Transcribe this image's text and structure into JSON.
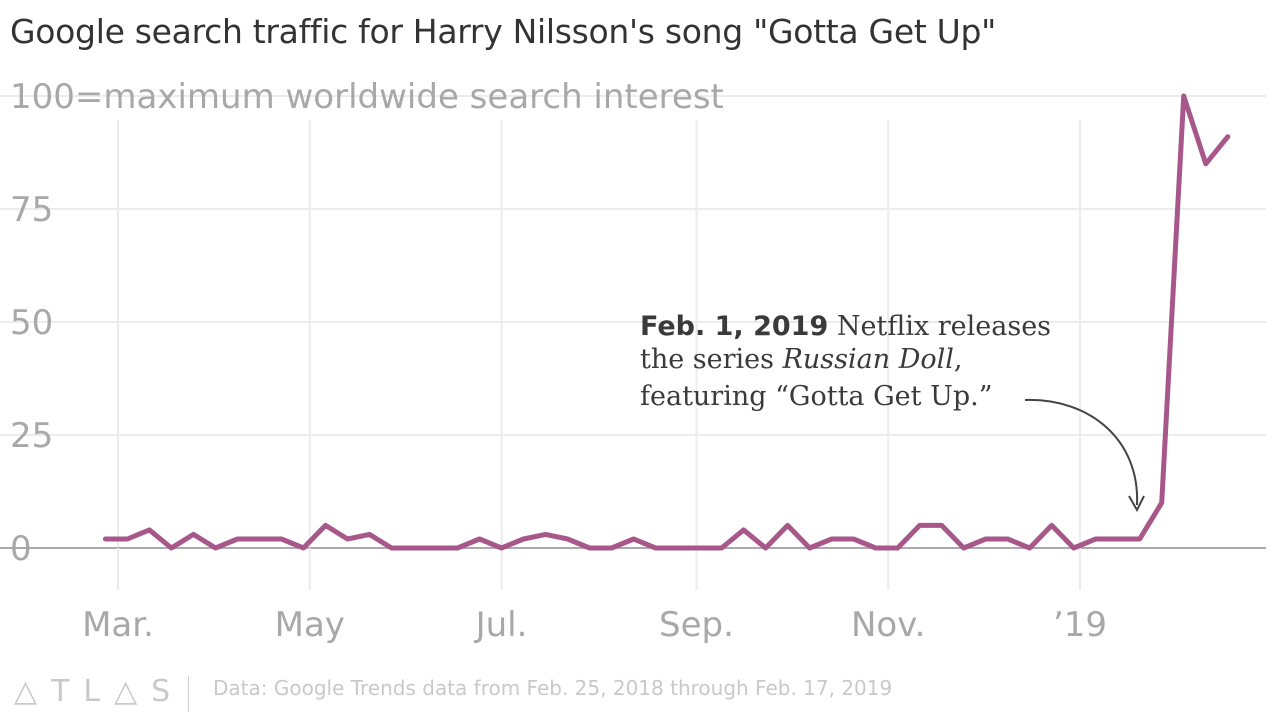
{
  "chart_data": {
    "type": "line",
    "title": "Google search traffic for Harry Nilsson's song \"Gotta Get Up\"",
    "subtitle": "100=maximum worldwide search interest",
    "ylim": [
      0,
      100
    ],
    "y_ticks": [
      "0",
      "25",
      "50",
      "75"
    ],
    "x_ticks": [
      "Mar.",
      "May",
      "Jul.",
      "Sep.",
      "Nov.",
      "’19"
    ],
    "x_tick_dates": [
      "2018-03-01",
      "2018-05-01",
      "2018-07-01",
      "2018-09-01",
      "2018-11-01",
      "2019-01-01"
    ],
    "grid": true,
    "series": [
      {
        "color": "#a8578b",
        "x": [
          "2018-02-25",
          "2018-03-04",
          "2018-03-11",
          "2018-03-18",
          "2018-03-25",
          "2018-04-01",
          "2018-04-08",
          "2018-04-15",
          "2018-04-22",
          "2018-04-29",
          "2018-05-06",
          "2018-05-13",
          "2018-05-20",
          "2018-05-27",
          "2018-06-03",
          "2018-06-10",
          "2018-06-17",
          "2018-06-24",
          "2018-07-01",
          "2018-07-08",
          "2018-07-15",
          "2018-07-22",
          "2018-07-29",
          "2018-08-05",
          "2018-08-12",
          "2018-08-19",
          "2018-08-26",
          "2018-09-02",
          "2018-09-09",
          "2018-09-16",
          "2018-09-23",
          "2018-09-30",
          "2018-10-07",
          "2018-10-14",
          "2018-10-21",
          "2018-10-28",
          "2018-11-04",
          "2018-11-11",
          "2018-11-18",
          "2018-11-25",
          "2018-12-02",
          "2018-12-09",
          "2018-12-16",
          "2018-12-23",
          "2018-12-30",
          "2019-01-06",
          "2019-01-13",
          "2019-01-20",
          "2019-01-27",
          "2019-02-03",
          "2019-02-10",
          "2019-02-17"
        ],
        "values": [
          2,
          2,
          4,
          0,
          3,
          0,
          2,
          2,
          2,
          0,
          5,
          2,
          3,
          0,
          0,
          0,
          0,
          2,
          0,
          2,
          3,
          2,
          0,
          0,
          2,
          0,
          0,
          0,
          0,
          4,
          0,
          5,
          0,
          2,
          2,
          0,
          0,
          5,
          5,
          0,
          2,
          2,
          0,
          5,
          0,
          2,
          2,
          2,
          10,
          100,
          85,
          91
        ]
      }
    ],
    "annotation": {
      "date": "Feb. 1, 2019",
      "line1_rest": " Netflix releases",
      "line2_pre": "the series ",
      "line2_italic": "Russian Doll",
      "line2_post": ",",
      "line3": "featuring “Gotta Get Up.”"
    },
    "source": "Data: Google Trends data from Feb. 25, 2018 through Feb. 17, 2019",
    "brand": "ATLAS"
  },
  "colors": {
    "line": "#a8578b",
    "grid": "#ececec",
    "axis": "#aaaaaa",
    "tick_text": "#a8a8a8",
    "title": "#333333"
  }
}
